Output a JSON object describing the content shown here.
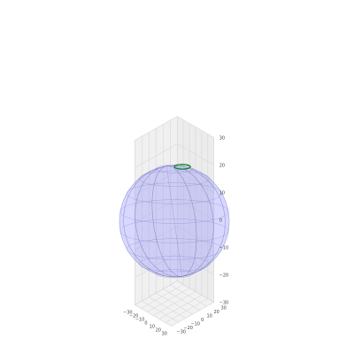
{
  "chart_data": {
    "type": "surface3d",
    "title": "",
    "xlabel": "",
    "ylabel": "",
    "zlabel": "",
    "xlim": [
      -30,
      30
    ],
    "ylim": [
      -30,
      30
    ],
    "zlim": [
      -30,
      30
    ],
    "x_ticks": [
      "−30",
      "−20",
      "−10",
      "0",
      "10",
      "20",
      "30"
    ],
    "y_ticks": [
      "−30",
      "−20",
      "−10",
      "0",
      "10",
      "20",
      "30"
    ],
    "z_ticks": [
      "−30",
      "−20",
      "−10",
      "0",
      "10",
      "20",
      "30"
    ],
    "grid": true,
    "surfaces": [
      {
        "shape": "sphere",
        "center": [
          0,
          0,
          0
        ],
        "radius": 20,
        "color": "#8f8fff",
        "alpha": 0.35,
        "edge_color": "#7070c0"
      }
    ],
    "curves": [
      {
        "shape": "circle",
        "center": [
          0,
          0,
          19.7
        ],
        "radius": 3,
        "color": "#1a7a3a"
      }
    ]
  }
}
